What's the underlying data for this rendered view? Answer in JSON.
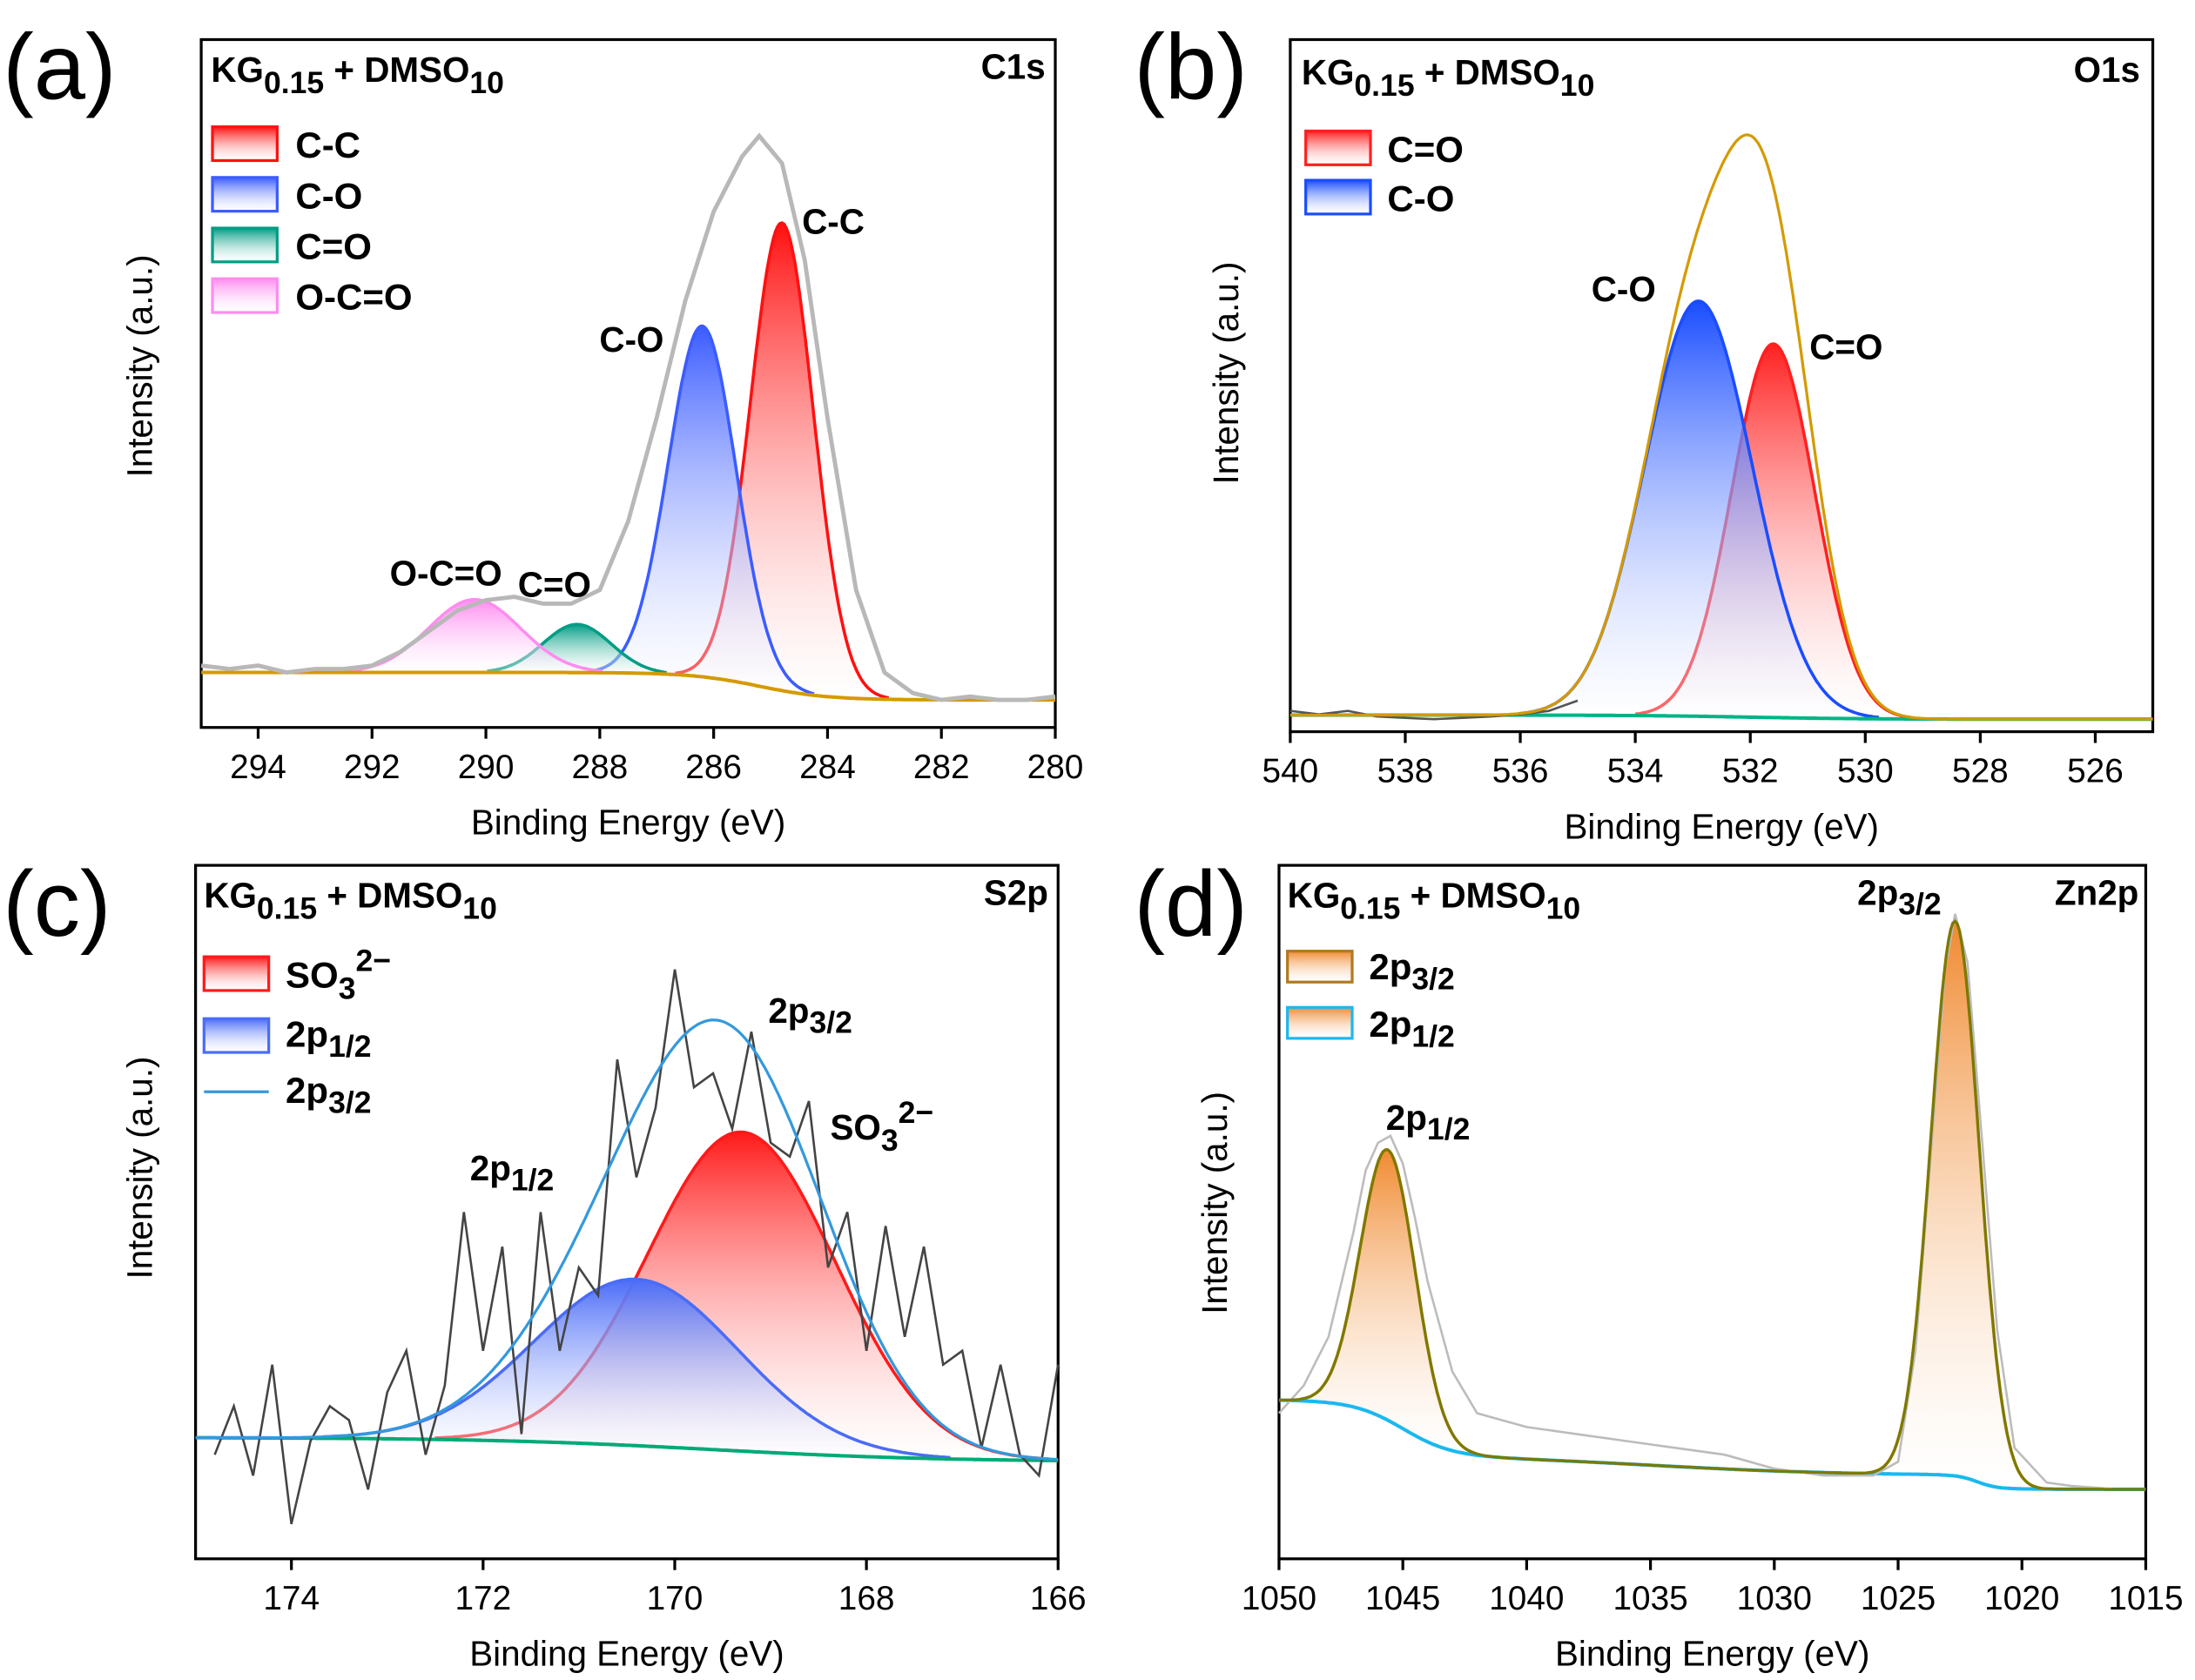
{
  "figure": {
    "panel_labels": [
      "(a)",
      "(b)",
      "(c)",
      "(d)"
    ]
  },
  "chart_data": [
    {
      "type": "line",
      "panel": "(a)",
      "sample": {
        "base": "KG",
        "sub1": "0.15",
        "mid": " + DMSO",
        "sub2": "10"
      },
      "core_level": "C1s",
      "xlabel": "Binding Energy (eV)",
      "ylabel": "Intensity (a.u.)",
      "xlim": [
        295,
        280
      ],
      "xticks": [
        294,
        292,
        290,
        288,
        286,
        284,
        282,
        280
      ],
      "ylim": [
        0,
        1
      ],
      "baseline": {
        "lo": 0.04,
        "steps": [
          {
            "center": 285.2,
            "height": 0.04,
            "width": 0.6
          }
        ],
        "color": "#d49a00"
      },
      "components": [
        {
          "name": "C-C",
          "center": 284.8,
          "height": 0.68,
          "fwhm": 1.3,
          "color": "#ff1010"
        },
        {
          "name": "C-O",
          "center": 286.2,
          "height": 0.51,
          "fwhm": 1.4,
          "color": "#3b5cff"
        },
        {
          "name": "C=O",
          "center": 288.4,
          "height": 0.07,
          "fwhm": 1.4,
          "color": "#009d84"
        },
        {
          "name": "O-C=O",
          "center": 290.2,
          "height": 0.106,
          "fwhm": 1.9,
          "color": "#ff8cf0"
        }
      ],
      "envelope": null,
      "raw": {
        "color": "#b8b8b8",
        "x": [
          295,
          294.5,
          294,
          293.5,
          293,
          292.5,
          292,
          291.5,
          291,
          290.5,
          290,
          289.5,
          289,
          288.5,
          288,
          287.5,
          287,
          286.5,
          286,
          285.5,
          285.2,
          284.8,
          284.4,
          284,
          283.5,
          283,
          282.5,
          282,
          281.5,
          281,
          280.5,
          280
        ],
        "y": [
          0.09,
          0.085,
          0.09,
          0.08,
          0.085,
          0.085,
          0.09,
          0.11,
          0.14,
          0.17,
          0.185,
          0.19,
          0.18,
          0.18,
          0.2,
          0.3,
          0.45,
          0.62,
          0.75,
          0.83,
          0.86,
          0.82,
          0.68,
          0.45,
          0.2,
          0.08,
          0.05,
          0.04,
          0.045,
          0.04,
          0.04,
          0.045
        ]
      },
      "legend": [
        {
          "label": "C-C",
          "component": 0
        },
        {
          "label": "C-O",
          "component": 1
        },
        {
          "label": "C=O",
          "component": 2
        },
        {
          "label": "O-C=O",
          "component": 3
        }
      ],
      "annotations": {
        "c_c": "C-C",
        "c_o": "C-O",
        "c_eq_o": "C=O",
        "o_c_eq_o": "O-C=O"
      }
    },
    {
      "type": "line",
      "panel": "(b)",
      "sample": {
        "base": "KG",
        "sub1": "0.15",
        "mid": " + DMSO",
        "sub2": "10"
      },
      "core_level": "O1s",
      "xlabel": "Binding Energy (eV)",
      "ylabel": "Intensity (a.u.)",
      "xlim": [
        540,
        525
      ],
      "xticks": [
        540,
        538,
        536,
        534,
        532,
        530,
        528,
        526
      ],
      "ylim": [
        0,
        1
      ],
      "baseline": {
        "lo": 0.018,
        "steps": [
          {
            "center": 532,
            "height": 0.006,
            "width": 1.0
          }
        ],
        "color": "#00b386"
      },
      "components": [
        {
          "name": "C=O",
          "center": 531.6,
          "height": 0.54,
          "fwhm": 1.7,
          "color": "#ff2020"
        },
        {
          "name": "C-O",
          "center": 532.9,
          "height": 0.6,
          "fwhm": 2.2,
          "color": "#1a4dff"
        }
      ],
      "envelope": {
        "color": "#d49a00"
      },
      "raw": {
        "color": "#555555",
        "x": [
          540,
          539.5,
          539,
          538.5,
          538,
          537.5,
          537,
          536.5,
          536,
          535.5,
          535
        ],
        "y": [
          0.03,
          0.025,
          0.03,
          0.022,
          0.02,
          0.018,
          0.02,
          0.022,
          0.025,
          0.03,
          0.045
        ]
      },
      "legend": [
        {
          "label": "C=O",
          "component": 0
        },
        {
          "label": "C-O",
          "component": 1
        }
      ],
      "annotations": {
        "c_o": "C-O",
        "c_eq_o": "C=O"
      }
    },
    {
      "type": "line",
      "panel": "(c)",
      "sample": {
        "base": "KG",
        "sub1": "0.15",
        "mid": " + DMSO",
        "sub2": "10"
      },
      "core_level": "S2p",
      "xlabel": "Binding Energy (eV)",
      "ylabel": "Intensity (a.u.)",
      "xlim": [
        175,
        166
      ],
      "xticks": [
        174,
        172,
        170,
        168,
        166
      ],
      "ylim": [
        0,
        1
      ],
      "baseline": {
        "lo": 0.14,
        "steps": [
          {
            "center": 169.6,
            "height": 0.035,
            "width": 1.2
          }
        ],
        "color": "#00aa77"
      },
      "components": [
        {
          "name": "SO3 2- 2p3/2",
          "center": 169.3,
          "height": 0.46,
          "fwhm": 2.3,
          "color": "#ff1a1a"
        },
        {
          "name": "2p1/2",
          "center": 170.4,
          "height": 0.24,
          "fwhm": 2.5,
          "color": "#4a6cf7"
        }
      ],
      "envelope": {
        "color": "#3399dd"
      },
      "raw": {
        "color": "#444444",
        "x": [
          174.8,
          174.6,
          174.4,
          174.2,
          174.0,
          173.8,
          173.6,
          173.4,
          173.2,
          173.0,
          172.8,
          172.6,
          172.4,
          172.2,
          172.0,
          171.8,
          171.6,
          171.4,
          171.2,
          171.0,
          170.8,
          170.6,
          170.4,
          170.2,
          170.0,
          169.8,
          169.6,
          169.4,
          169.2,
          169.0,
          168.8,
          168.6,
          168.4,
          168.2,
          168.0,
          167.8,
          167.6,
          167.4,
          167.2,
          167.0,
          166.8,
          166.6,
          166.4,
          166.2,
          166.0
        ],
        "y": [
          0.15,
          0.22,
          0.12,
          0.28,
          0.05,
          0.17,
          0.22,
          0.2,
          0.1,
          0.24,
          0.3,
          0.15,
          0.25,
          0.5,
          0.3,
          0.45,
          0.18,
          0.5,
          0.3,
          0.42,
          0.38,
          0.72,
          0.55,
          0.65,
          0.85,
          0.68,
          0.7,
          0.62,
          0.76,
          0.6,
          0.58,
          0.66,
          0.42,
          0.5,
          0.3,
          0.48,
          0.32,
          0.45,
          0.28,
          0.3,
          0.16,
          0.28,
          0.15,
          0.12,
          0.28
        ]
      },
      "legend": [
        {
          "label_parts": [
            "SO",
            "3",
            "2−"
          ],
          "component": 0
        },
        {
          "label_parts": [
            "2p",
            "1/2"
          ],
          "component": 1
        },
        {
          "label_parts": [
            "2p",
            "3/2"
          ],
          "line": true
        }
      ],
      "annotations": {
        "p32": [
          "2p",
          "3/2"
        ],
        "p12": [
          "2p",
          "1/2"
        ],
        "so3": [
          "SO",
          "3",
          "2−"
        ]
      }
    },
    {
      "type": "line",
      "panel": "(d)",
      "sample": {
        "base": "KG",
        "sub1": "0.15",
        "mid": " + DMSO",
        "sub2": "10"
      },
      "core_level": "Zn2p",
      "xlabel": "Binding Energy (eV)",
      "ylabel": "Intensity (a.u.)",
      "xlim": [
        1050,
        1015
      ],
      "xticks": [
        1050,
        1045,
        1040,
        1035,
        1030,
        1025,
        1020,
        1015
      ],
      "ylim": [
        0,
        1
      ],
      "baseline": {
        "lo": 0.1,
        "steps": [
          {
            "center": 1045.0,
            "height": 0.08,
            "width": 1.0
          },
          {
            "center": 1035,
            "height": 0.03,
            "width": 4
          },
          {
            "center": 1021.8,
            "height": 0.02,
            "width": 0.4
          }
        ],
        "color": "#1ab8f0"
      },
      "components": [
        {
          "name": "2p3/2",
          "center": 1022.7,
          "height": 0.8,
          "fwhm": 2.3,
          "color": "#f08a30"
        },
        {
          "name": "2p1/2",
          "center": 1045.6,
          "height": 0.39,
          "fwhm": 2.6,
          "color": "#f08a30"
        }
      ],
      "envelope": {
        "color": "#7a7a00"
      },
      "raw": {
        "color": "#bcbcbc",
        "x": [
          1050,
          1049,
          1048,
          1047,
          1046.5,
          1046,
          1045.5,
          1045,
          1044.5,
          1044,
          1043,
          1042,
          1041,
          1040,
          1038,
          1036,
          1034,
          1032,
          1030,
          1028,
          1026,
          1025,
          1024.3,
          1023.6,
          1023.1,
          1022.7,
          1022.2,
          1021.6,
          1021,
          1020.3,
          1019,
          1018,
          1016,
          1015
        ],
        "y": [
          0.21,
          0.25,
          0.32,
          0.47,
          0.56,
          0.6,
          0.61,
          0.57,
          0.49,
          0.4,
          0.27,
          0.21,
          0.2,
          0.19,
          0.18,
          0.17,
          0.16,
          0.15,
          0.13,
          0.12,
          0.12,
          0.14,
          0.3,
          0.62,
          0.85,
          0.93,
          0.86,
          0.6,
          0.33,
          0.16,
          0.11,
          0.105,
          0.1,
          0.1
        ]
      },
      "legend": [
        {
          "label_parts": [
            "2p",
            "3/2"
          ],
          "component": 0,
          "border": "#b07a20"
        },
        {
          "label_parts": [
            "2p",
            "1/2"
          ],
          "component": 1,
          "border": "#1ab8f0"
        }
      ],
      "annotations": {
        "p32": [
          "2p",
          "3/2"
        ],
        "p12": [
          "2p",
          "1/2"
        ]
      }
    }
  ]
}
